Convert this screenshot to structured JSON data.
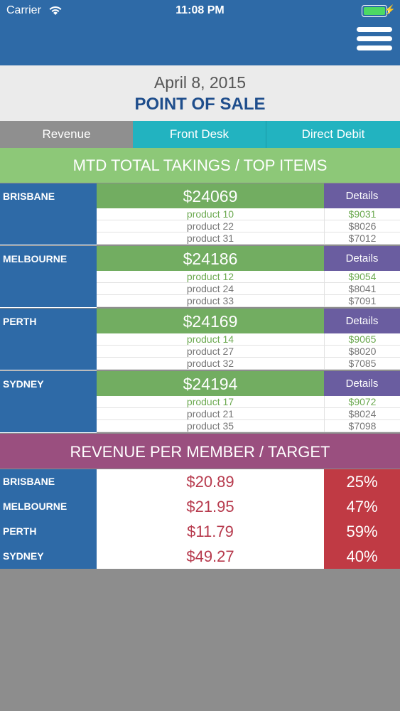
{
  "status_bar": {
    "carrier": "Carrier",
    "time": "11:08 PM",
    "battery_level": 1.0
  },
  "nav": {
    "menu_icon": "hamburger-menu-icon"
  },
  "header": {
    "date": "April 8, 2015",
    "title": "POINT OF SALE"
  },
  "tabs": [
    {
      "label": "Revenue",
      "selected": true
    },
    {
      "label": "Front Desk",
      "selected": false
    },
    {
      "label": "Direct Debit",
      "selected": false
    }
  ],
  "mtd": {
    "title": "MTD TOTAL TAKINGS / TOP ITEMS",
    "details_label": "Details",
    "cities": [
      {
        "name": "BRISBANE",
        "total": "$24069",
        "products": [
          {
            "name": "product 10",
            "value": "$9031"
          },
          {
            "name": "product 22",
            "value": "$8026"
          },
          {
            "name": "product 31",
            "value": "$7012"
          }
        ]
      },
      {
        "name": "MELBOURNE",
        "total": "$24186",
        "products": [
          {
            "name": "product 12",
            "value": "$9054"
          },
          {
            "name": "product 24",
            "value": "$8041"
          },
          {
            "name": "product 33",
            "value": "$7091"
          }
        ]
      },
      {
        "name": "PERTH",
        "total": "$24169",
        "products": [
          {
            "name": "product 14",
            "value": "$9065"
          },
          {
            "name": "product 27",
            "value": "$8020"
          },
          {
            "name": "product 32",
            "value": "$7085"
          }
        ]
      },
      {
        "name": "SYDNEY",
        "total": "$24194",
        "products": [
          {
            "name": "product 17",
            "value": "$9072"
          },
          {
            "name": "product 21",
            "value": "$8024"
          },
          {
            "name": "product 35",
            "value": "$7098"
          }
        ]
      }
    ]
  },
  "revenue_per_member": {
    "title": "REVENUE PER MEMBER / TARGET",
    "rows": [
      {
        "city": "BRISBANE",
        "value": "$20.89",
        "target": "25%"
      },
      {
        "city": "MELBOURNE",
        "value": "$21.95",
        "target": "47%"
      },
      {
        "city": "PERTH",
        "value": "$11.79",
        "target": "59%"
      },
      {
        "city": "SYDNEY",
        "value": "$49.27",
        "target": "40%"
      }
    ]
  },
  "colors": {
    "nav_blue": "#2e6aa7",
    "title_blue": "#1f4e8c",
    "tab_teal": "#22b3c0",
    "tab_selected": "#8f8f8f",
    "mtd_green": "#8dc878",
    "total_green": "#72ad61",
    "details_purple": "#6a5da0",
    "rev_purple": "#9a4f7f",
    "value_red": "#b73a4d",
    "pct_red": "#c03a44"
  }
}
